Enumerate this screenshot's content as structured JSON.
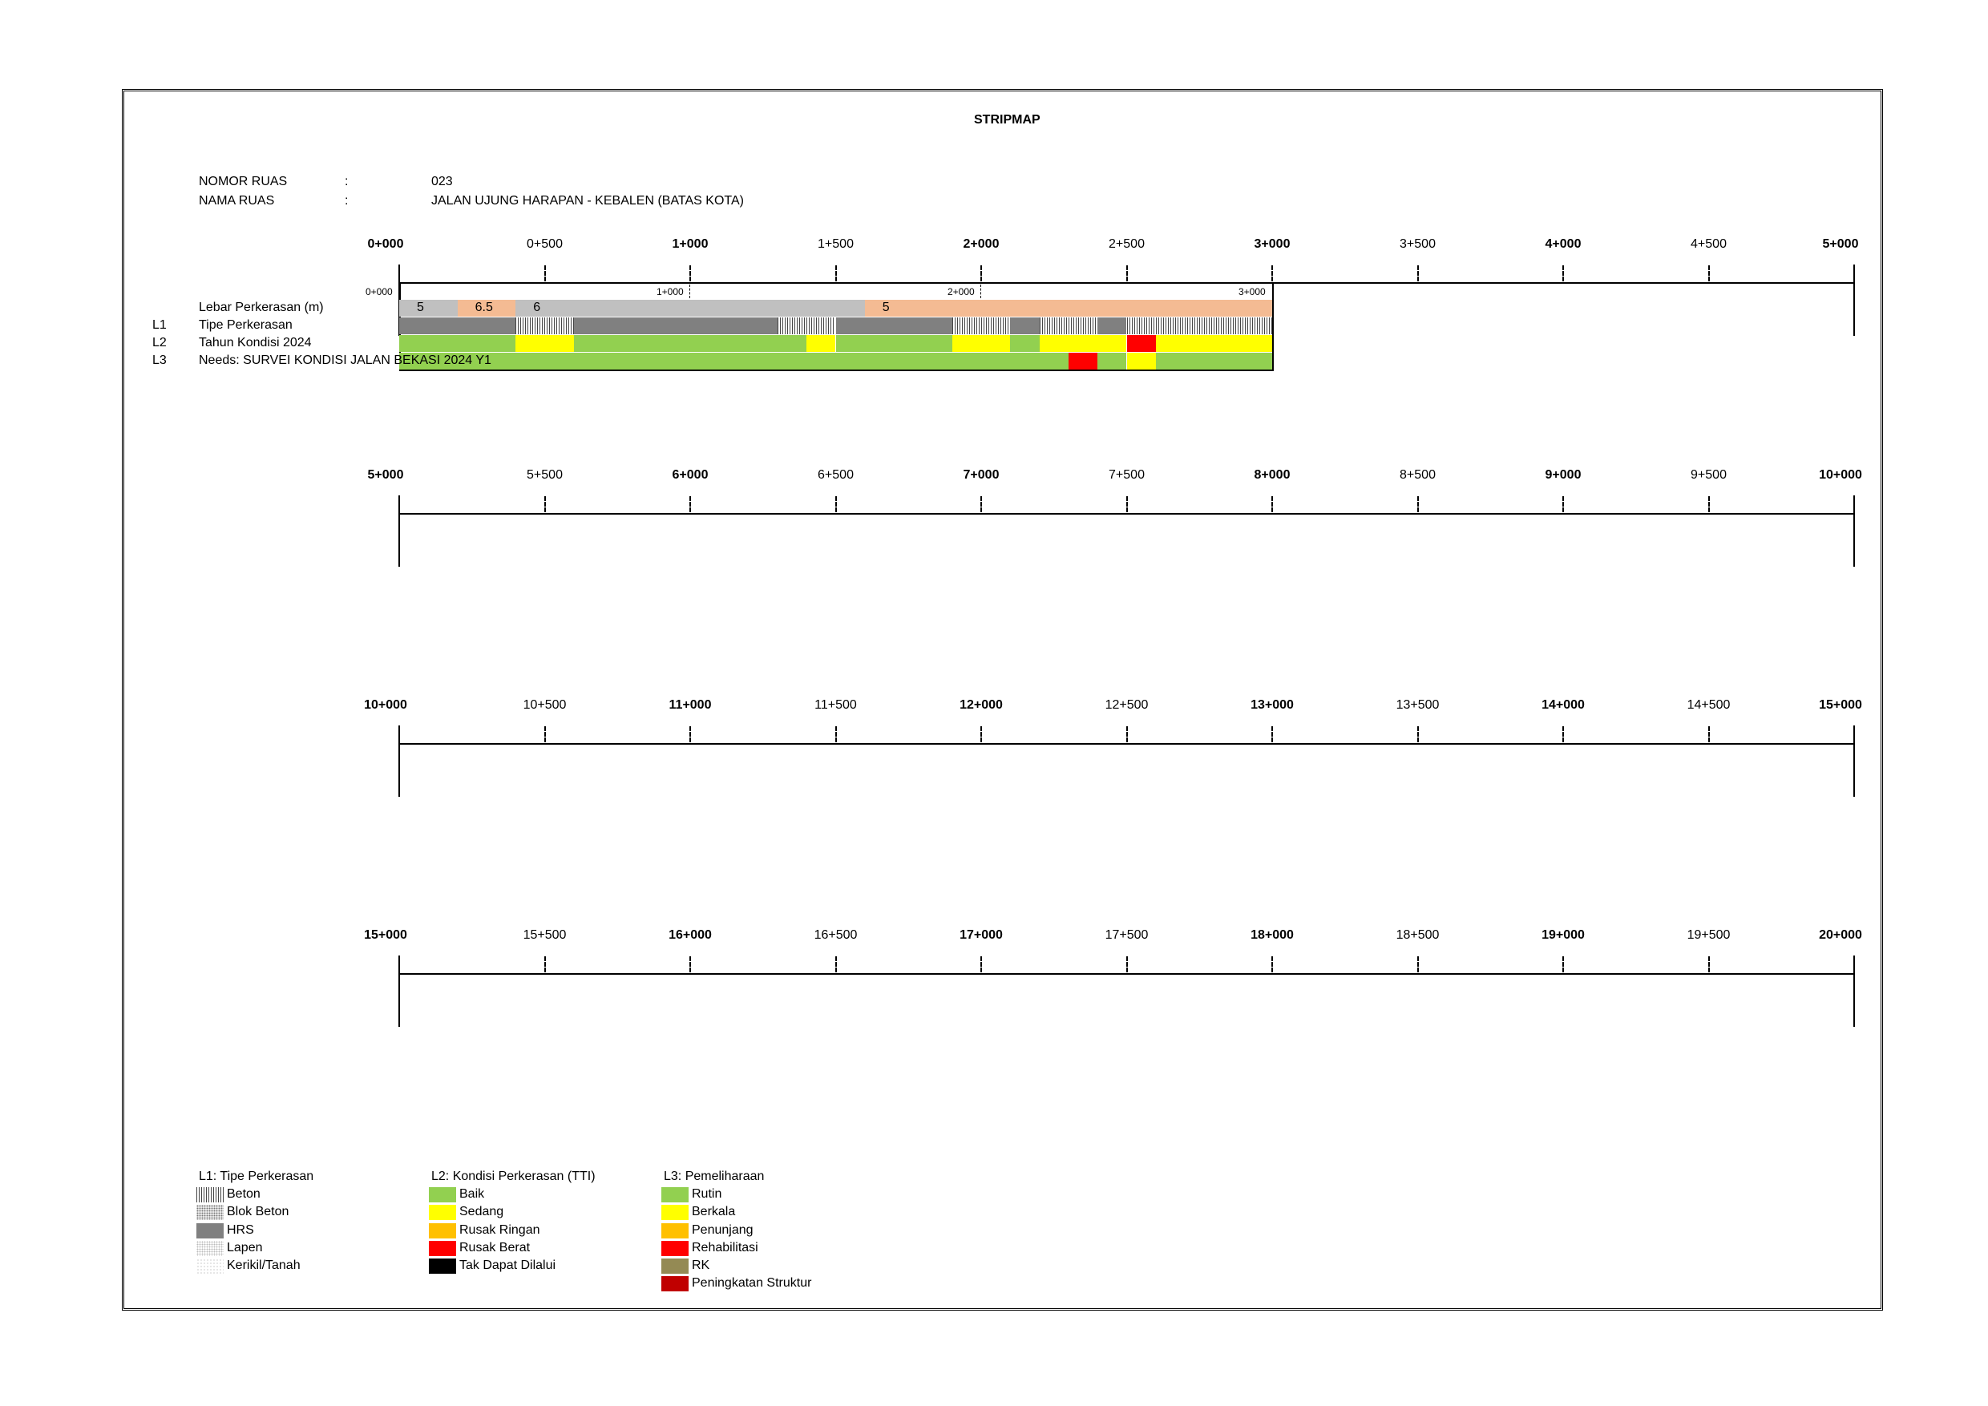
{
  "title": "STRIPMAP",
  "header": {
    "nomor_label": "NOMOR RUAS",
    "nomor_colon": ":",
    "nomor_value": "023",
    "nama_label": "NAMA RUAS",
    "nama_colon": ":",
    "nama_value": "JALAN UJUNG HARAPAN - KEBALEN (BATAS KOTA)"
  },
  "rows": [
    {
      "code": "",
      "label": "Lebar Perkerasan (m)"
    },
    {
      "code": "L1",
      "label": "Tipe Perkerasan"
    },
    {
      "code": "L2",
      "label": "Tahun Kondisi 2024"
    },
    {
      "code": "L3",
      "label": "Needs: SURVEI KONDISI JALAN BEKASI 2024 Y1"
    }
  ],
  "strips": [
    {
      "ticks": [
        {
          "label": "0+000",
          "major": true
        },
        {
          "label": "0+500",
          "major": false
        },
        {
          "label": "1+000",
          "major": true
        },
        {
          "label": "1+500",
          "major": false
        },
        {
          "label": "2+000",
          "major": true
        },
        {
          "label": "2+500",
          "major": false
        },
        {
          "label": "3+000",
          "major": true
        },
        {
          "label": "3+500",
          "major": false
        },
        {
          "label": "4+000",
          "major": true
        },
        {
          "label": "4+500",
          "major": false
        },
        {
          "label": "5+000",
          "major": true
        }
      ]
    },
    {
      "ticks": [
        {
          "label": "5+000",
          "major": true
        },
        {
          "label": "5+500",
          "major": false
        },
        {
          "label": "6+000",
          "major": true
        },
        {
          "label": "6+500",
          "major": false
        },
        {
          "label": "7+000",
          "major": true
        },
        {
          "label": "7+500",
          "major": false
        },
        {
          "label": "8+000",
          "major": true
        },
        {
          "label": "8+500",
          "major": false
        },
        {
          "label": "9+000",
          "major": true
        },
        {
          "label": "9+500",
          "major": false
        },
        {
          "label": "10+000",
          "major": true
        }
      ]
    },
    {
      "ticks": [
        {
          "label": "10+000",
          "major": true
        },
        {
          "label": "10+500",
          "major": false
        },
        {
          "label": "11+000",
          "major": true
        },
        {
          "label": "11+500",
          "major": false
        },
        {
          "label": "12+000",
          "major": true
        },
        {
          "label": "12+500",
          "major": false
        },
        {
          "label": "13+000",
          "major": true
        },
        {
          "label": "13+500",
          "major": false
        },
        {
          "label": "14+000",
          "major": true
        },
        {
          "label": "14+500",
          "major": false
        },
        {
          "label": "15+000",
          "major": true
        }
      ]
    },
    {
      "ticks": [
        {
          "label": "15+000",
          "major": true
        },
        {
          "label": "15+500",
          "major": false
        },
        {
          "label": "16+000",
          "major": true
        },
        {
          "label": "16+500",
          "major": false
        },
        {
          "label": "17+000",
          "major": true
        },
        {
          "label": "17+500",
          "major": false
        },
        {
          "label": "18+000",
          "major": true
        },
        {
          "label": "18+500",
          "major": false
        },
        {
          "label": "19+000",
          "major": true
        },
        {
          "label": "19+500",
          "major": false
        },
        {
          "label": "20+000",
          "major": true
        }
      ]
    }
  ],
  "road": {
    "length_km": 3.0,
    "mini_ticks": [
      {
        "label": "0+000",
        "km": 0
      },
      {
        "label": "1+000",
        "km": 1
      },
      {
        "label": "2+000",
        "km": 2
      },
      {
        "label": "3+000",
        "km": 3
      }
    ],
    "lebar": [
      {
        "from": 0.0,
        "to": 0.2,
        "value": "5",
        "color": "#c0c0c0"
      },
      {
        "from": 0.2,
        "to": 0.4,
        "value": "6.5",
        "color": "#f4bb93"
      },
      {
        "from": 0.4,
        "to": 1.6,
        "value": "6",
        "color": "#c0c0c0"
      },
      {
        "from": 1.6,
        "to": 3.0,
        "value": "5",
        "color": "#f4bb93"
      }
    ],
    "tipe": [
      {
        "from": 0.0,
        "to": 0.4,
        "type": "HRS"
      },
      {
        "from": 0.4,
        "to": 0.6,
        "type": "Beton"
      },
      {
        "from": 0.6,
        "to": 1.3,
        "type": "HRS"
      },
      {
        "from": 1.3,
        "to": 1.5,
        "type": "Beton"
      },
      {
        "from": 1.5,
        "to": 1.9,
        "type": "HRS"
      },
      {
        "from": 1.9,
        "to": 2.1,
        "type": "Beton"
      },
      {
        "from": 2.1,
        "to": 2.2,
        "type": "HRS"
      },
      {
        "from": 2.2,
        "to": 2.4,
        "type": "Beton"
      },
      {
        "from": 2.4,
        "to": 2.5,
        "type": "HRS"
      },
      {
        "from": 2.5,
        "to": 3.0,
        "type": "Beton"
      }
    ],
    "kondisi": [
      {
        "from": 0.0,
        "to": 0.4,
        "status": "Baik"
      },
      {
        "from": 0.4,
        "to": 0.6,
        "status": "Sedang"
      },
      {
        "from": 0.6,
        "to": 1.4,
        "status": "Baik"
      },
      {
        "from": 1.4,
        "to": 1.5,
        "status": "Sedang"
      },
      {
        "from": 1.5,
        "to": 1.9,
        "status": "Baik"
      },
      {
        "from": 1.9,
        "to": 2.1,
        "status": "Sedang"
      },
      {
        "from": 2.1,
        "to": 2.2,
        "status": "Baik"
      },
      {
        "from": 2.2,
        "to": 2.5,
        "status": "Sedang"
      },
      {
        "from": 2.5,
        "to": 2.6,
        "status": "Rusak Berat"
      },
      {
        "from": 2.6,
        "to": 3.0,
        "status": "Sedang"
      }
    ],
    "needs": [
      {
        "from": 0.0,
        "to": 2.3,
        "need": "Rutin"
      },
      {
        "from": 2.3,
        "to": 2.4,
        "need": "Rehabilitasi"
      },
      {
        "from": 2.4,
        "to": 2.5,
        "need": "Rutin"
      },
      {
        "from": 2.5,
        "to": 2.6,
        "need": "Berkala"
      },
      {
        "from": 2.6,
        "to": 3.0,
        "need": "Rutin"
      }
    ]
  },
  "legend": {
    "l1": {
      "title": "L1: Tipe Perkerasan",
      "items": [
        {
          "label": "Beton",
          "style": "Beton"
        },
        {
          "label": "Blok Beton",
          "style": "Blok Beton"
        },
        {
          "label": "HRS",
          "style": "HRS"
        },
        {
          "label": "Lapen",
          "style": "Lapen"
        },
        {
          "label": "Kerikil/Tanah",
          "style": "Kerikil/Tanah"
        }
      ]
    },
    "l2": {
      "title": "L2: Kondisi Perkerasan (TTI)",
      "items": [
        {
          "label": "Baik",
          "color": "#92d050"
        },
        {
          "label": "Sedang",
          "color": "#ffff00"
        },
        {
          "label": "Rusak Ringan",
          "color": "#ffc000"
        },
        {
          "label": "Rusak Berat",
          "color": "#ff0000"
        },
        {
          "label": "Tak Dapat Dilalui",
          "color": "#000000"
        }
      ]
    },
    "l3": {
      "title": "L3: Pemeliharaan",
      "items": [
        {
          "label": "Rutin",
          "color": "#92d050"
        },
        {
          "label": "Berkala",
          "color": "#ffff00"
        },
        {
          "label": "Penunjang",
          "color": "#ffc000"
        },
        {
          "label": "Rehabilitasi",
          "color": "#ff0000"
        },
        {
          "label": "RK",
          "color": "#948a54"
        },
        {
          "label": "Peningkatan Struktur",
          "color": "#c00000"
        }
      ]
    }
  }
}
